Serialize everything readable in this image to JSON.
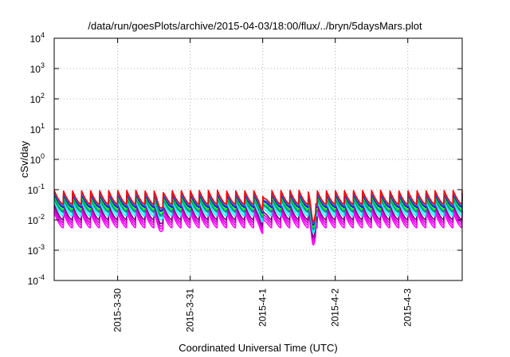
{
  "chart_data": {
    "type": "line",
    "title": "/data/run/goesPlots/archive/2015-04-03/18:00/flux/../bryn/5daysMars.plot",
    "xlabel": "Coordinated Universal Time (UTC)",
    "ylabel": "cSv/day",
    "yscale": "log",
    "ylim": [
      0.0001,
      10000
    ],
    "y_ticks": [
      {
        "base": "10",
        "exp": "-4",
        "value": 0.0001
      },
      {
        "base": "10",
        "exp": "-3",
        "value": 0.001
      },
      {
        "base": "10",
        "exp": "-2",
        "value": 0.01
      },
      {
        "base": "10",
        "exp": "-1",
        "value": 0.1
      },
      {
        "base": "10",
        "exp": "0",
        "value": 1
      },
      {
        "base": "10",
        "exp": "1",
        "value": 10
      },
      {
        "base": "10",
        "exp": "2",
        "value": 100
      },
      {
        "base": "10",
        "exp": "3",
        "value": 1000
      },
      {
        "base": "10",
        "exp": "4",
        "value": 10000
      }
    ],
    "xlim": [
      "2015-03-29 03:00",
      "2015-04-03 18:00"
    ],
    "x_ticks": [
      "2015-3-30",
      "2015-3-31",
      "2015-4-1",
      "2015-4-2",
      "2015-4-3"
    ],
    "x_tick_dates": [
      "2015-03-30",
      "2015-03-31",
      "2015-04-01",
      "2015-04-02",
      "2015-04-03"
    ],
    "grid": true,
    "pattern": {
      "period_hours": 3,
      "dip": {
        "start": "2015-04-01 15:00",
        "end": "2015-04-01 17:30",
        "minimum_date": "2015-04-01 16:40"
      },
      "secondary_dips": [
        "2015-03-30 14:00",
        "2015-04-01 00:00"
      ]
    },
    "series": [
      {
        "color": "#ff00ff",
        "peak": 0.018,
        "trough": 0.0055
      },
      {
        "color": "#ff00ff",
        "peak": 0.022,
        "trough": 0.0068
      },
      {
        "color": "#cc00cc",
        "peak": 0.027,
        "trough": 0.0082
      },
      {
        "color": "#800080",
        "peak": 0.033,
        "trough": 0.01
      },
      {
        "color": "#00ffff",
        "peak": 0.042,
        "trough": 0.0135
      },
      {
        "color": "#00cccc",
        "peak": 0.05,
        "trough": 0.017
      },
      {
        "color": "#008080",
        "peak": 0.055,
        "trough": 0.019
      },
      {
        "color": "#00ff00",
        "peak": 0.062,
        "trough": 0.022
      },
      {
        "color": "#0000ff",
        "peak": 0.072,
        "trough": 0.026
      },
      {
        "color": "#3366cc",
        "peak": 0.08,
        "trough": 0.029
      },
      {
        "color": "#ff0000",
        "peak": 0.095,
        "trough": 0.033
      }
    ]
  }
}
